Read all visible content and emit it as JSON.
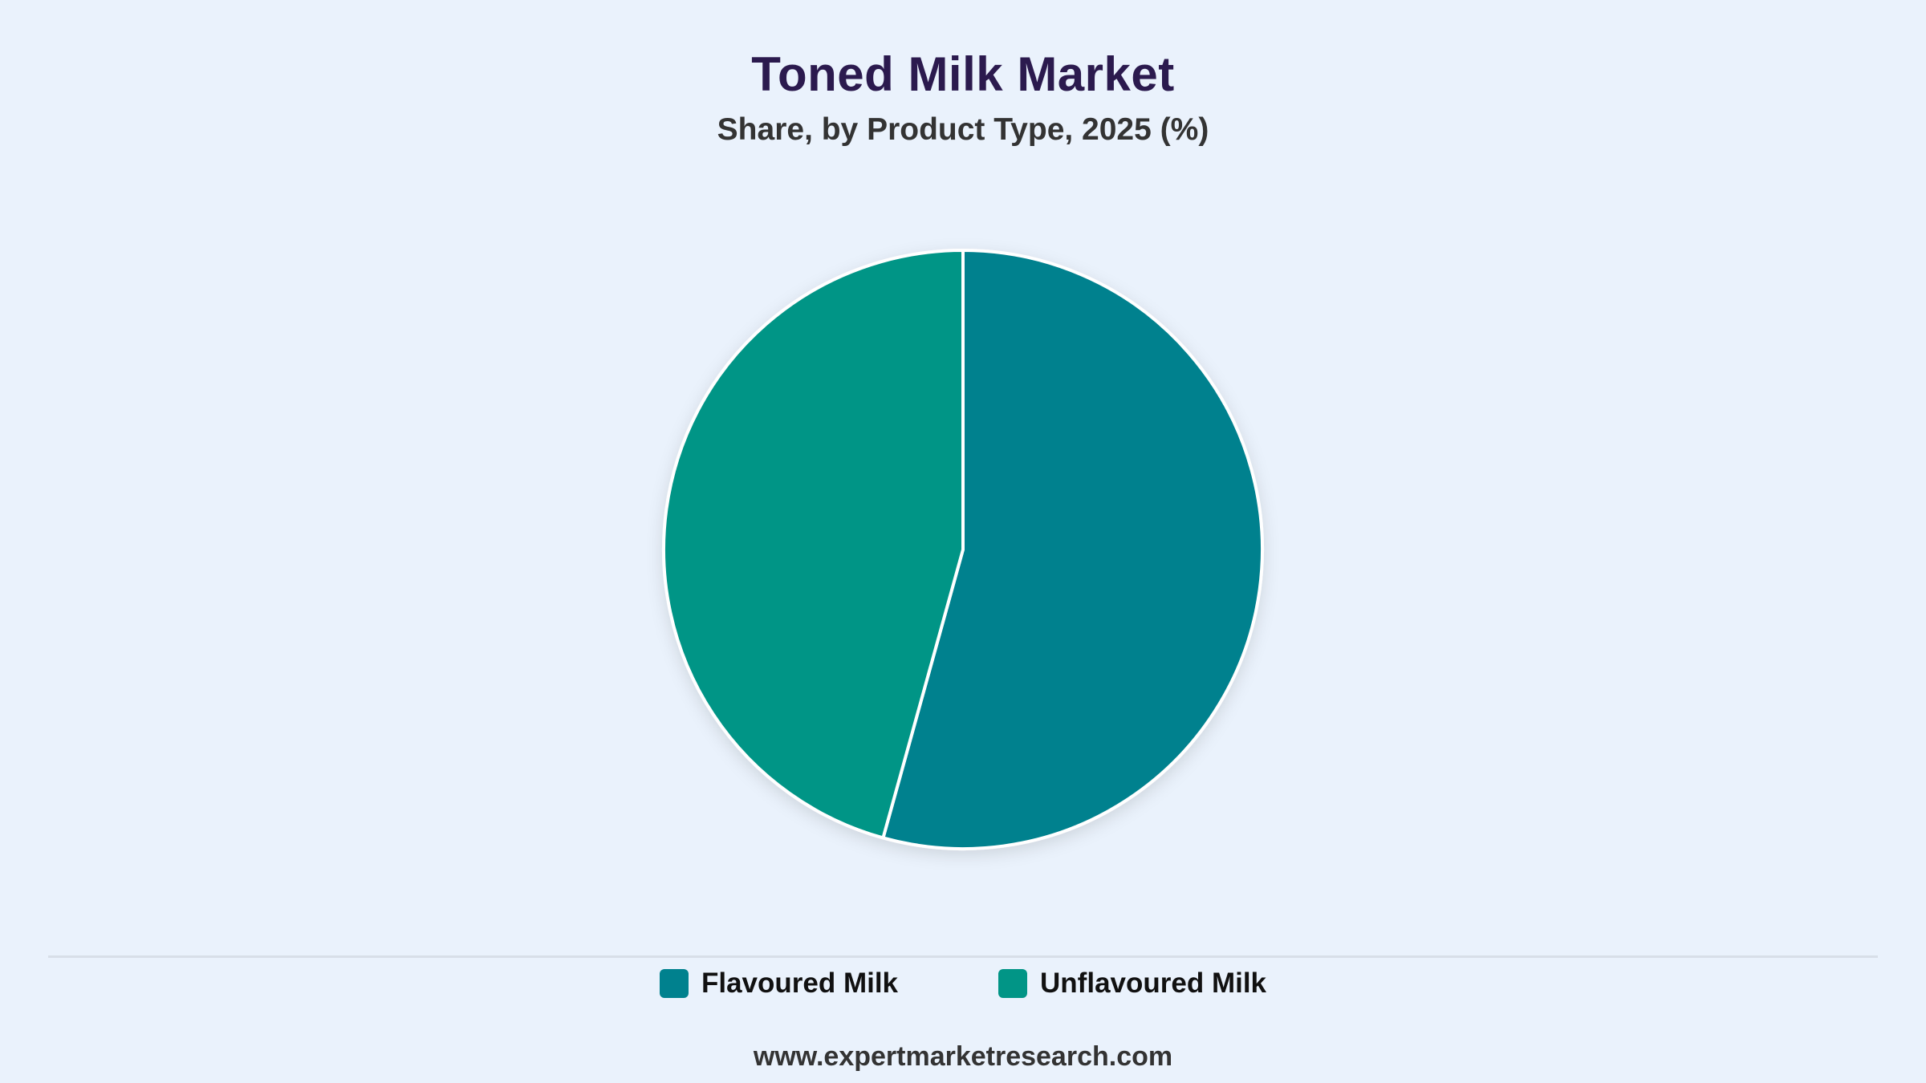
{
  "title": "Toned Milk Market",
  "subtitle": "Share, by Product Type, 2025 (%)",
  "source": "www.expertmarketresearch.com",
  "colors": {
    "background": "#EAF2FC",
    "slice_border": "#FFFFFF"
  },
  "chart_data": {
    "type": "pie",
    "title": "Toned Milk Market",
    "subtitle": "Share, by Product Type, 2025 (%)",
    "start_angle": "top, clockwise",
    "legend_position": "bottom",
    "slices": [
      {
        "name": "Flavoured Milk",
        "value": 54.3,
        "color": "#00818E"
      },
      {
        "name": "Unflavoured Milk",
        "value": 45.7,
        "color": "#019586"
      }
    ]
  },
  "legend": [
    {
      "label": "Flavoured Milk",
      "color": "#00818E"
    },
    {
      "label": "Unflavoured Milk",
      "color": "#019586"
    }
  ]
}
